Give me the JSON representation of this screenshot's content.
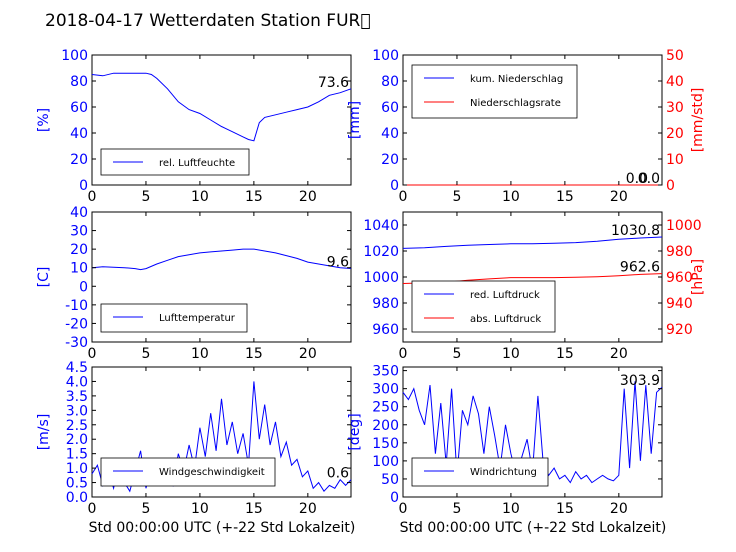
{
  "figure": {
    "title": "2018-04-17 Wetterdaten Station FUR\u0000",
    "xlabel": "Std 00:00:00 UTC (+-22 Std Lokalzeit)"
  },
  "colors": {
    "blue": "#0000ff",
    "red": "#ff0000",
    "black": "#000000"
  },
  "chart_data": [
    {
      "id": "humidity",
      "type": "line",
      "xlim": [
        0,
        24
      ],
      "xticks": [
        0,
        5,
        10,
        15,
        20
      ],
      "ylim": [
        0,
        100
      ],
      "yticks": [
        0,
        20,
        40,
        60,
        80,
        100
      ],
      "ylabel": "[%]",
      "latest_value": "73.6",
      "series": [
        {
          "name": "rel. Luftfeuchte",
          "color": "#0000ff",
          "x": [
            0,
            1,
            2,
            3,
            4,
            5,
            5.5,
            6,
            7,
            8,
            9,
            10,
            11,
            12,
            13,
            14,
            14.5,
            15,
            15.5,
            16,
            17,
            18,
            19,
            20,
            21,
            22,
            23,
            24
          ],
          "y": [
            85,
            84,
            86,
            86,
            86,
            86,
            85,
            82,
            74,
            64,
            58,
            55,
            50,
            45,
            41,
            37,
            35,
            34,
            48,
            52,
            54,
            56,
            58,
            60,
            64,
            69,
            71,
            74
          ]
        }
      ]
    },
    {
      "id": "precipitation",
      "type": "line",
      "xlim": [
        0,
        24
      ],
      "xticks": [
        0,
        5,
        10,
        15,
        20
      ],
      "ylim": [
        0,
        100
      ],
      "yticks": [
        0,
        20,
        40,
        60,
        80,
        100
      ],
      "ylabel": "[mm]",
      "y2lim": [
        0,
        50
      ],
      "y2ticks": [
        0,
        10,
        20,
        30,
        40,
        50
      ],
      "y2label": "[mm/std]",
      "latest_value": "0.0",
      "latest_value2": "0.0",
      "series": [
        {
          "name": "kum. Niederschlag",
          "color": "#0000ff",
          "axis": "left",
          "x": [
            0,
            24
          ],
          "y": [
            0,
            0
          ]
        },
        {
          "name": "Niederschlagsrate",
          "color": "#ff0000",
          "axis": "right",
          "x": [
            0,
            24
          ],
          "y": [
            0,
            0
          ]
        }
      ]
    },
    {
      "id": "temperature",
      "type": "line",
      "xlim": [
        0,
        24
      ],
      "xticks": [
        0,
        5,
        10,
        15,
        20
      ],
      "ylim": [
        -30,
        40
      ],
      "yticks": [
        -30,
        -20,
        -10,
        0,
        10,
        20,
        30,
        40
      ],
      "ylabel": "[C]",
      "latest_value": "9.6",
      "series": [
        {
          "name": "Lufttemperatur",
          "color": "#0000ff",
          "x": [
            0,
            1,
            2,
            3,
            4,
            4.5,
            5,
            6,
            7,
            8,
            9,
            10,
            11,
            12,
            13,
            14,
            15,
            16,
            17,
            18,
            19,
            20,
            21,
            22,
            23,
            24
          ],
          "y": [
            10,
            10.5,
            10.3,
            10,
            9.5,
            9,
            9.5,
            12,
            14,
            16,
            17,
            18,
            18.5,
            19,
            19.5,
            20,
            20,
            19,
            18,
            16.5,
            15,
            13,
            12,
            11,
            10,
            9.6
          ]
        }
      ]
    },
    {
      "id": "pressure",
      "type": "line",
      "xlim": [
        0,
        24
      ],
      "xticks": [
        0,
        5,
        10,
        15,
        20
      ],
      "ylim": [
        950,
        1050
      ],
      "yticks": [
        960,
        980,
        1000,
        1020,
        1040
      ],
      "ylabel": "",
      "y2lim": [
        910,
        1010
      ],
      "y2ticks": [
        920,
        940,
        960,
        980,
        1000
      ],
      "y2label": "[hPa]",
      "latest_value": "1030.8",
      "latest_value2": "962.6",
      "series": [
        {
          "name": "red. Luftdruck",
          "color": "#0000ff",
          "axis": "left",
          "x": [
            0,
            2,
            4,
            6,
            8,
            10,
            12,
            14,
            16,
            18,
            20,
            22,
            24
          ],
          "y": [
            1022,
            1022.5,
            1023.5,
            1024.5,
            1025,
            1025.5,
            1025.5,
            1026,
            1026.5,
            1027.5,
            1029,
            1030,
            1030.8
          ]
        },
        {
          "name": "abs. Luftdruck",
          "color": "#ff0000",
          "axis": "right",
          "x": [
            0,
            2,
            4,
            6,
            8,
            10,
            12,
            14,
            16,
            18,
            20,
            22,
            24
          ],
          "y": [
            955,
            955.5,
            956,
            957.5,
            958.5,
            959.5,
            959.5,
            959.5,
            959.8,
            960.2,
            961,
            962,
            962.6
          ]
        }
      ]
    },
    {
      "id": "windspeed",
      "type": "line",
      "xlim": [
        0,
        24
      ],
      "xticks": [
        0,
        5,
        10,
        15,
        20
      ],
      "ylim": [
        0,
        4.5
      ],
      "yticks": [
        0.0,
        0.5,
        1.0,
        1.5,
        2.0,
        2.5,
        3.0,
        3.5,
        4.0,
        4.5
      ],
      "ylabel": "[m/s]",
      "latest_value": "0.6",
      "series": [
        {
          "name": "Windgeschwindigkeit",
          "color": "#0000ff",
          "x": [
            0,
            0.5,
            1,
            1.5,
            2,
            2.5,
            3,
            3.5,
            4,
            4.5,
            5,
            5.5,
            6,
            6.5,
            7,
            7.5,
            8,
            8.5,
            9,
            9.5,
            10,
            10.5,
            11,
            11.5,
            12,
            12.5,
            13,
            13.5,
            14,
            14.5,
            15,
            15.5,
            16,
            16.5,
            17,
            17.5,
            18,
            18.5,
            19,
            19.5,
            20,
            20.5,
            21,
            21.5,
            22,
            22.5,
            23,
            23.5,
            24
          ],
          "y": [
            0.8,
            1.1,
            0.4,
            0.9,
            0.3,
            1.2,
            0.5,
            0.2,
            0.9,
            1.6,
            0.3,
            1.1,
            0.6,
            1.3,
            0.8,
            0.4,
            1.5,
            0.9,
            1.8,
            1.0,
            2.4,
            1.4,
            2.9,
            1.6,
            3.4,
            1.8,
            2.6,
            1.5,
            2.2,
            1.1,
            4.0,
            2.0,
            3.2,
            1.8,
            2.6,
            1.4,
            1.9,
            1.1,
            1.3,
            0.7,
            0.9,
            0.3,
            0.5,
            0.2,
            0.4,
            0.3,
            0.6,
            0.4,
            0.6
          ]
        }
      ]
    },
    {
      "id": "winddirection",
      "type": "line",
      "xlim": [
        0,
        24
      ],
      "xticks": [
        0,
        5,
        10,
        15,
        20
      ],
      "ylim": [
        0,
        360
      ],
      "yticks": [
        0,
        50,
        100,
        150,
        200,
        250,
        300,
        350
      ],
      "ylabel": "[deg]",
      "latest_value": "303.9",
      "series": [
        {
          "name": "Windrichtung",
          "color": "#0000ff",
          "x": [
            0,
            0.5,
            1,
            1.5,
            2,
            2.5,
            3,
            3.5,
            4,
            4.5,
            5,
            5.5,
            6,
            6.5,
            7,
            7.5,
            8,
            8.5,
            9,
            9.5,
            10,
            10.5,
            11,
            11.5,
            12,
            12.5,
            13,
            13.5,
            14,
            14.5,
            15,
            15.5,
            16,
            16.5,
            17,
            17.5,
            18,
            18.5,
            19,
            19.5,
            20,
            20.5,
            21,
            21.5,
            22,
            22.5,
            23,
            23.5,
            24
          ],
          "y": [
            290,
            270,
            300,
            240,
            200,
            310,
            120,
            260,
            90,
            300,
            60,
            240,
            200,
            280,
            230,
            120,
            250,
            170,
            80,
            200,
            120,
            60,
            110,
            160,
            70,
            280,
            90,
            60,
            80,
            50,
            60,
            40,
            70,
            50,
            60,
            40,
            50,
            60,
            50,
            45,
            60,
            300,
            80,
            320,
            100,
            310,
            120,
            290,
            304
          ]
        }
      ]
    }
  ]
}
